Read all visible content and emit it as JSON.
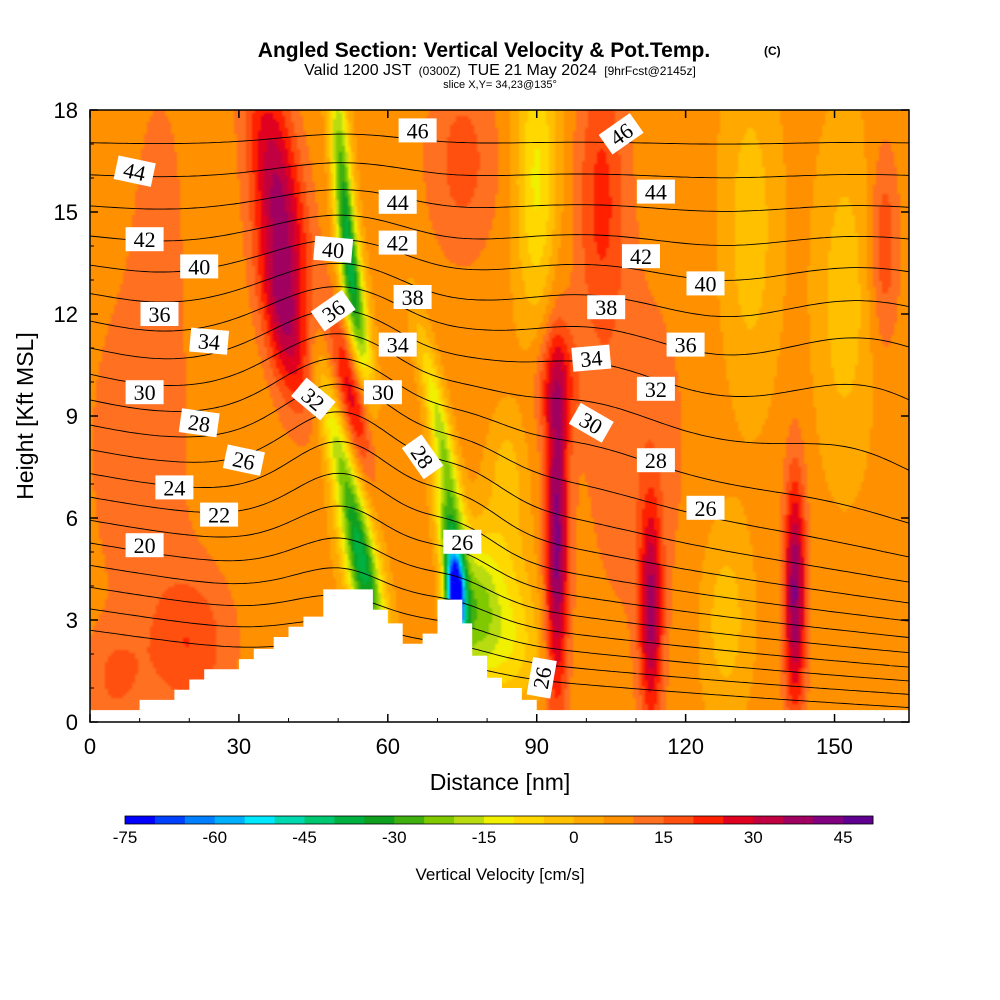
{
  "chart_data": {
    "type": "heatmap",
    "title": "Angled Section: Vertical Velocity & Pot.Temp.",
    "title_unit": "(C)",
    "subtitle_prefix": "Valid 1200 JST",
    "subtitle_z": "(0300Z)",
    "subtitle_date": "TUE 21 May 2024",
    "subtitle_fcst": "[9hrFcst@2145z]",
    "slice_text": "slice X,Y= 34,23@135°",
    "xlabel": "Distance [nm]",
    "ylabel": "Height [Kft MSL]",
    "xlim": [
      0,
      165
    ],
    "ylim": [
      0,
      18
    ],
    "x_ticks": [
      "0",
      "30",
      "60",
      "90",
      "120",
      "150"
    ],
    "x_tick_values": [
      0,
      30,
      60,
      90,
      120,
      150
    ],
    "y_ticks": [
      "0",
      "3",
      "6",
      "9",
      "12",
      "15",
      "18"
    ],
    "y_tick_values": [
      0,
      3,
      6,
      9,
      12,
      15,
      18
    ],
    "colorbar": {
      "label": "Vertical Velocity [cm/s]",
      "min": -75,
      "max": 50,
      "step": 5,
      "tick_labels": [
        "-75",
        "-60",
        "-45",
        "-30",
        "-15",
        "0",
        "15",
        "30",
        "45"
      ],
      "tick_values": [
        -75,
        -60,
        -45,
        -30,
        -15,
        0,
        15,
        30,
        45
      ],
      "colors": [
        "#0000ff",
        "#0040ff",
        "#0080ff",
        "#00b0ff",
        "#00e8ff",
        "#00d8b0",
        "#00c870",
        "#00b040",
        "#10a020",
        "#40b010",
        "#80c800",
        "#b8dc10",
        "#f0f000",
        "#ffd800",
        "#ffc000",
        "#ffa800",
        "#ff9000",
        "#ff7020",
        "#ff5010",
        "#ff2000",
        "#e00020",
        "#c00040",
        "#a00060",
        "#800080",
        "#600090"
      ]
    },
    "terrain_profile": [
      [
        0,
        0.35
      ],
      [
        10,
        0.35
      ],
      [
        10,
        0.65
      ],
      [
        17,
        0.65
      ],
      [
        17,
        0.95
      ],
      [
        20,
        0.95
      ],
      [
        20,
        1.25
      ],
      [
        23,
        1.25
      ],
      [
        23,
        1.55
      ],
      [
        30,
        1.55
      ],
      [
        30,
        1.85
      ],
      [
        33,
        1.85
      ],
      [
        33,
        2.15
      ],
      [
        37,
        2.15
      ],
      [
        37,
        2.5
      ],
      [
        40,
        2.5
      ],
      [
        40,
        2.8
      ],
      [
        43,
        2.8
      ],
      [
        43,
        3.1
      ],
      [
        47,
        3.1
      ],
      [
        47,
        3.9
      ],
      [
        57,
        3.9
      ],
      [
        57,
        3.3
      ],
      [
        60,
        3.3
      ],
      [
        60,
        2.9
      ],
      [
        63,
        2.9
      ],
      [
        63,
        2.3
      ],
      [
        67,
        2.3
      ],
      [
        67,
        2.6
      ],
      [
        70,
        2.6
      ],
      [
        70,
        3.6
      ],
      [
        75,
        3.6
      ],
      [
        75,
        2.9
      ],
      [
        77,
        2.9
      ],
      [
        77,
        1.95
      ],
      [
        80,
        1.95
      ],
      [
        80,
        1.3
      ],
      [
        83,
        1.3
      ],
      [
        83,
        1.0
      ],
      [
        87,
        1.0
      ],
      [
        87,
        0.65
      ],
      [
        90,
        0.65
      ],
      [
        90,
        0.35
      ],
      [
        165,
        0.35
      ]
    ],
    "vertical_velocity_features": [
      {
        "x": 38,
        "y": 15.5,
        "sx": 3.5,
        "sy": 2.6,
        "v": 28,
        "tilt": -0.3
      },
      {
        "x": 39,
        "y": 11.8,
        "sx": 3.0,
        "sy": 1.8,
        "v": 22,
        "tilt": -0.35
      },
      {
        "x": 51,
        "y": 15.5,
        "sx": 1.4,
        "sy": 3.0,
        "v": -32,
        "tilt": -0.15
      },
      {
        "x": 54,
        "y": 12.0,
        "sx": 1.5,
        "sy": 2.2,
        "v": -28,
        "tilt": -0.25
      },
      {
        "x": 51,
        "y": 7.5,
        "sx": 2.0,
        "sy": 2.2,
        "v": -25,
        "tilt": -0.5
      },
      {
        "x": 55,
        "y": 4.3,
        "sx": 2.4,
        "sy": 1.6,
        "v": -36,
        "tilt": -0.4
      },
      {
        "x": 53,
        "y": 9.6,
        "sx": 2.2,
        "sy": 1.6,
        "v": 25,
        "tilt": -0.4
      },
      {
        "x": 71,
        "y": 8.3,
        "sx": 1.5,
        "sy": 2.2,
        "v": -24,
        "tilt": -0.45
      },
      {
        "x": 73,
        "y": 4.8,
        "sx": 1.6,
        "sy": 1.6,
        "v": -40,
        "tilt": -0.3
      },
      {
        "x": 73.5,
        "y": 3.4,
        "sx": 1.3,
        "sy": 1.0,
        "v": -70,
        "tilt": 0
      },
      {
        "x": 78,
        "y": 3.4,
        "sx": 2.8,
        "sy": 1.4,
        "v": -20,
        "tilt": 0
      },
      {
        "x": 84,
        "y": 2.2,
        "sx": 5.0,
        "sy": 1.3,
        "v": -14,
        "tilt": 0
      },
      {
        "x": 83,
        "y": 4.5,
        "sx": 4.0,
        "sy": 1.6,
        "v": -10,
        "tilt": 0
      },
      {
        "x": 90,
        "y": 16.0,
        "sx": 3.0,
        "sy": 3.0,
        "v": -18,
        "tilt": 0
      },
      {
        "x": 84,
        "y": 7.5,
        "sx": 2.5,
        "sy": 1.2,
        "v": -8,
        "tilt": 0
      },
      {
        "x": 94,
        "y": 5.3,
        "sx": 1.6,
        "sy": 3.4,
        "v": 35,
        "tilt": 0
      },
      {
        "x": 94,
        "y": 10.0,
        "sx": 3.0,
        "sy": 1.2,
        "v": 15,
        "tilt": 0
      },
      {
        "x": 103,
        "y": 15.5,
        "sx": 3.5,
        "sy": 3.0,
        "v": 14,
        "tilt": 0
      },
      {
        "x": 113,
        "y": 3.2,
        "sx": 1.6,
        "sy": 2.3,
        "v": 28,
        "tilt": 0
      },
      {
        "x": 128,
        "y": 3.0,
        "sx": 3.5,
        "sy": 2.0,
        "v": -10,
        "tilt": 0
      },
      {
        "x": 142,
        "y": 3.8,
        "sx": 1.5,
        "sy": 2.4,
        "v": 34,
        "tilt": 0
      },
      {
        "x": 133,
        "y": 14.5,
        "sx": 4.0,
        "sy": 3.5,
        "v": -10,
        "tilt": 0
      },
      {
        "x": 152,
        "y": 12.5,
        "sx": 4.0,
        "sy": 3.5,
        "v": -10,
        "tilt": 0
      },
      {
        "x": 160,
        "y": 14.0,
        "sx": 2.0,
        "sy": 2.0,
        "v": 12,
        "tilt": 0
      },
      {
        "x": 10,
        "y": 8.0,
        "sx": 8.0,
        "sy": 4.0,
        "v": 6,
        "tilt": 0
      },
      {
        "x": 20,
        "y": 2.3,
        "sx": 6.0,
        "sy": 1.5,
        "v": 12,
        "tilt": 0
      },
      {
        "x": 5,
        "y": 1.3,
        "sx": 4.0,
        "sy": 1.0,
        "v": 8,
        "tilt": 0
      },
      {
        "x": 14,
        "y": 15.5,
        "sx": 4.0,
        "sy": 3.0,
        "v": 4,
        "tilt": 0
      },
      {
        "x": 75,
        "y": 16.5,
        "sx": 5.0,
        "sy": 2.0,
        "v": 10,
        "tilt": 0
      },
      {
        "x": 110,
        "y": 8.0,
        "sx": 8.0,
        "sy": 4.0,
        "v": 6,
        "tilt": 0
      }
    ],
    "theta_levels": [
      20,
      21,
      22,
      23,
      24,
      25,
      26,
      27,
      28,
      29,
      30,
      31,
      32,
      33,
      34,
      35,
      36,
      37,
      38,
      39,
      40,
      41,
      42,
      43,
      44,
      45,
      46
    ],
    "theta_labels": [
      {
        "text": "44",
        "x": 9,
        "y": 16.2,
        "angle": 12
      },
      {
        "text": "42",
        "x": 11,
        "y": 14.2,
        "angle": 0
      },
      {
        "text": "40",
        "x": 22,
        "y": 13.4,
        "angle": 0
      },
      {
        "text": "36",
        "x": 14,
        "y": 12.0,
        "angle": 0
      },
      {
        "text": "34",
        "x": 24,
        "y": 11.2,
        "angle": 5
      },
      {
        "text": "30",
        "x": 11,
        "y": 9.7,
        "angle": 0
      },
      {
        "text": "28",
        "x": 22,
        "y": 8.8,
        "angle": 8
      },
      {
        "text": "26",
        "x": 31,
        "y": 7.7,
        "angle": 12
      },
      {
        "text": "24",
        "x": 17,
        "y": 6.9,
        "angle": 0
      },
      {
        "text": "22",
        "x": 26,
        "y": 6.1,
        "angle": 0
      },
      {
        "text": "20",
        "x": 11,
        "y": 5.2,
        "angle": 0
      },
      {
        "text": "46",
        "x": 66,
        "y": 17.4,
        "angle": 0
      },
      {
        "text": "44",
        "x": 62,
        "y": 15.3,
        "angle": 0
      },
      {
        "text": "42",
        "x": 62,
        "y": 14.1,
        "angle": 0
      },
      {
        "text": "40",
        "x": 49,
        "y": 13.9,
        "angle": 5
      },
      {
        "text": "38",
        "x": 65,
        "y": 12.5,
        "angle": 0
      },
      {
        "text": "36",
        "x": 49,
        "y": 12.1,
        "angle": -35
      },
      {
        "text": "34",
        "x": 62,
        "y": 11.1,
        "angle": 0
      },
      {
        "text": "32",
        "x": 45,
        "y": 9.5,
        "angle": 40
      },
      {
        "text": "30",
        "x": 59,
        "y": 9.7,
        "angle": 0
      },
      {
        "text": "28",
        "x": 67,
        "y": 7.8,
        "angle": 55
      },
      {
        "text": "26",
        "x": 75,
        "y": 5.3,
        "angle": 0
      },
      {
        "text": "46",
        "x": 107,
        "y": 17.3,
        "angle": -35
      },
      {
        "text": "44",
        "x": 114,
        "y": 15.6,
        "angle": 0
      },
      {
        "text": "42",
        "x": 111,
        "y": 13.7,
        "angle": 0
      },
      {
        "text": "40",
        "x": 124,
        "y": 12.9,
        "angle": 0
      },
      {
        "text": "38",
        "x": 104,
        "y": 12.2,
        "angle": 0
      },
      {
        "text": "36",
        "x": 120,
        "y": 11.1,
        "angle": 0
      },
      {
        "text": "34",
        "x": 101,
        "y": 10.7,
        "angle": -5
      },
      {
        "text": "32",
        "x": 114,
        "y": 9.8,
        "angle": 0
      },
      {
        "text": "30",
        "x": 101,
        "y": 8.8,
        "angle": 30
      },
      {
        "text": "28",
        "x": 114,
        "y": 7.7,
        "angle": 0
      },
      {
        "text": "26",
        "x": 124,
        "y": 6.3,
        "angle": 0
      },
      {
        "text": "26",
        "x": 91,
        "y": 1.3,
        "angle": -80
      }
    ],
    "grid": false,
    "legend": "bottom"
  }
}
